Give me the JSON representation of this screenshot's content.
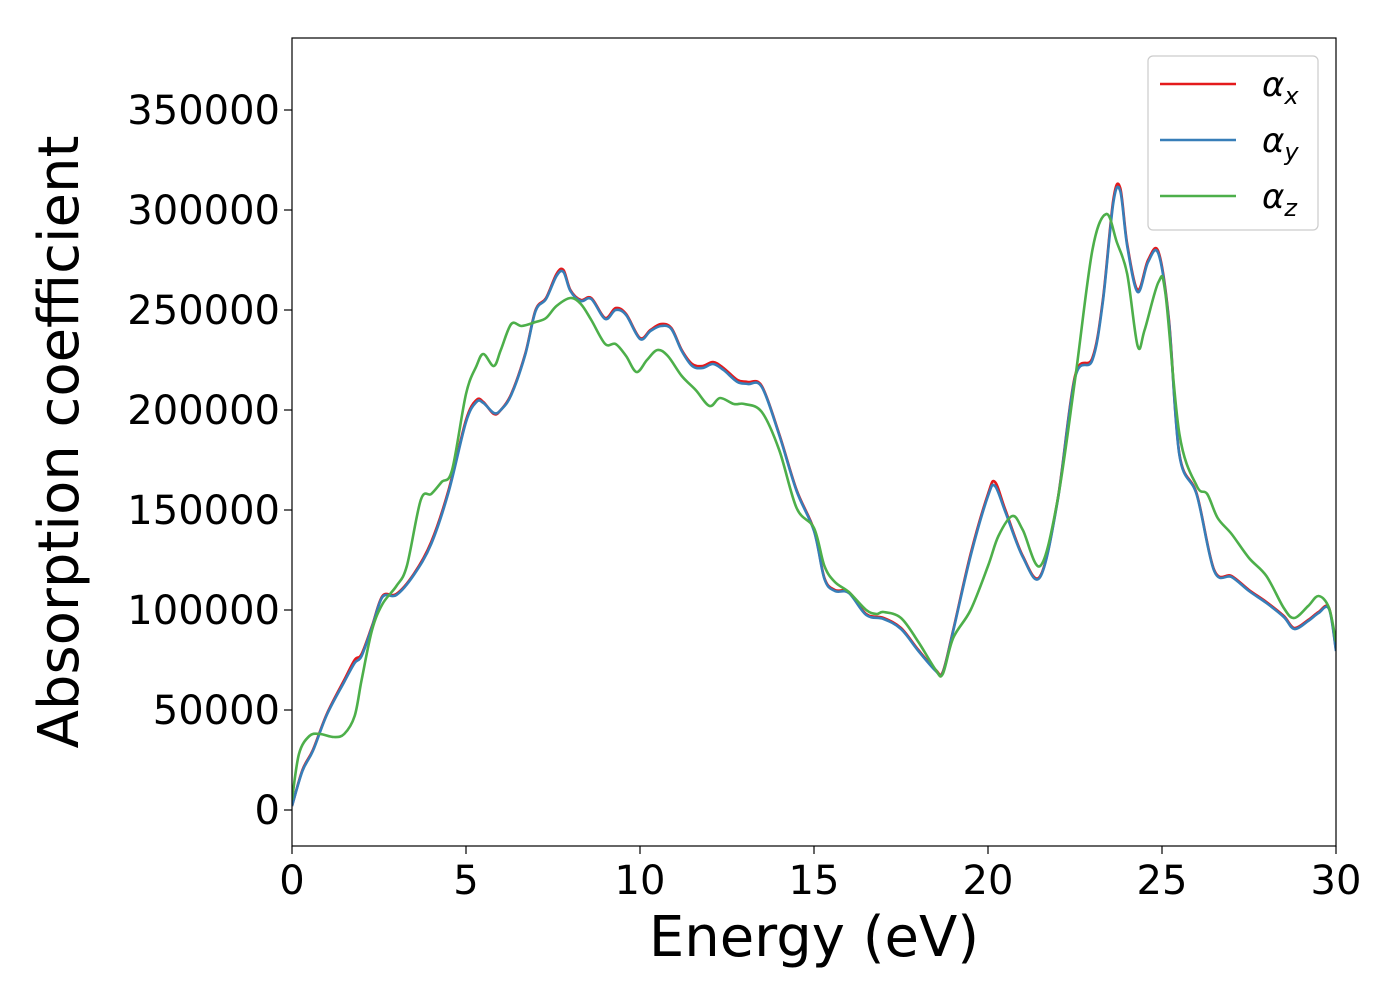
{
  "chart_data": {
    "type": "line",
    "title": "",
    "xlabel": "Energy (eV)",
    "ylabel": "Absorption coefficient",
    "xlim": [
      0,
      30
    ],
    "ylim": [
      -18000,
      386000
    ],
    "xticks": [
      0,
      5,
      10,
      15,
      20,
      25,
      30
    ],
    "yticks": [
      0,
      50000,
      100000,
      150000,
      200000,
      250000,
      300000,
      350000
    ],
    "grid": false,
    "legend": "top-right",
    "series": [
      {
        "name": "αx",
        "legend_base": "α",
        "legend_sub": "x",
        "color": "#e41a1c",
        "x": [
          0,
          0.3,
          0.6,
          1.0,
          1.5,
          1.8,
          2.0,
          2.3,
          2.6,
          3.0,
          3.5,
          4.0,
          4.5,
          5.0,
          5.3,
          5.5,
          5.8,
          6.0,
          6.3,
          6.7,
          7.0,
          7.3,
          7.6,
          7.8,
          8.0,
          8.3,
          8.6,
          9.0,
          9.3,
          9.6,
          10.0,
          10.3,
          10.6,
          10.9,
          11.2,
          11.5,
          11.8,
          12.1,
          12.4,
          12.8,
          13.1,
          13.5,
          14.0,
          14.5,
          15.0,
          15.3,
          15.6,
          16.0,
          16.5,
          17.0,
          17.5,
          18.0,
          18.5,
          18.7,
          19.0,
          19.5,
          20.0,
          20.2,
          20.5,
          21.0,
          21.5,
          22.0,
          22.5,
          23.0,
          23.3,
          23.6,
          23.8,
          24.0,
          24.3,
          24.6,
          24.9,
          25.2,
          25.5,
          26.0,
          26.5,
          27.0,
          27.5,
          28.0,
          28.5,
          28.8,
          29.2,
          29.5,
          29.8,
          30.0
        ],
        "values": [
          2000,
          20000,
          30000,
          48000,
          65000,
          75000,
          78000,
          92000,
          107000,
          108000,
          118000,
          134000,
          160000,
          195000,
          205000,
          204000,
          198000,
          200000,
          208000,
          228000,
          250000,
          256000,
          268000,
          270000,
          260000,
          255000,
          256000,
          246000,
          251000,
          248000,
          236000,
          240000,
          243000,
          241000,
          230000,
          223000,
          222000,
          224000,
          221000,
          215000,
          214000,
          212000,
          188000,
          160000,
          140000,
          116000,
          110000,
          109000,
          98000,
          96000,
          91000,
          80000,
          70000,
          69000,
          90000,
          128000,
          158000,
          164000,
          150000,
          127000,
          117000,
          155000,
          217000,
          226000,
          255000,
          305000,
          311000,
          283000,
          260000,
          275000,
          279000,
          245000,
          178000,
          158000,
          120000,
          117000,
          110000,
          104000,
          97000,
          91000,
          95000,
          99000,
          101000,
          80000
        ]
      },
      {
        "name": "αy",
        "legend_base": "α",
        "legend_sub": "y",
        "color": "#377eb8",
        "x": [
          0,
          0.3,
          0.6,
          1.0,
          1.5,
          1.8,
          2.0,
          2.3,
          2.6,
          3.0,
          3.5,
          4.0,
          4.5,
          5.0,
          5.3,
          5.5,
          5.8,
          6.0,
          6.3,
          6.7,
          7.0,
          7.3,
          7.6,
          7.8,
          8.0,
          8.3,
          8.6,
          9.0,
          9.3,
          9.6,
          10.0,
          10.3,
          10.6,
          10.9,
          11.2,
          11.5,
          11.8,
          12.1,
          12.4,
          12.8,
          13.1,
          13.5,
          14.0,
          14.5,
          15.0,
          15.3,
          15.6,
          16.0,
          16.5,
          17.0,
          17.5,
          18.0,
          18.5,
          18.7,
          19.0,
          19.5,
          20.0,
          20.2,
          20.5,
          21.0,
          21.5,
          22.0,
          22.5,
          23.0,
          23.3,
          23.6,
          23.8,
          24.0,
          24.3,
          24.6,
          24.9,
          25.2,
          25.5,
          26.0,
          26.5,
          27.0,
          27.5,
          28.0,
          28.5,
          28.8,
          29.2,
          29.5,
          29.8,
          30.0
        ],
        "values": [
          2000,
          19500,
          29500,
          47500,
          64000,
          73500,
          77000,
          91500,
          106500,
          107500,
          117500,
          133000,
          159000,
          194000,
          204000,
          203500,
          198500,
          200000,
          207500,
          227500,
          249500,
          255500,
          267000,
          269000,
          259500,
          254500,
          255500,
          245500,
          250000,
          247500,
          235500,
          239500,
          242000,
          240500,
          229500,
          222000,
          221000,
          223000,
          220000,
          214000,
          213000,
          211500,
          187500,
          159500,
          139500,
          115500,
          109500,
          108500,
          97500,
          95500,
          90500,
          79500,
          69500,
          68500,
          89500,
          127000,
          157000,
          162000,
          149000,
          126500,
          116500,
          154500,
          216000,
          225000,
          254000,
          303500,
          309500,
          282000,
          259000,
          274000,
          278000,
          244000,
          177500,
          157500,
          119500,
          116500,
          109500,
          103500,
          96500,
          90500,
          94500,
          98500,
          100500,
          79500
        ]
      },
      {
        "name": "αz",
        "legend_base": "α",
        "legend_sub": "z",
        "color": "#4daf4a",
        "x": [
          0,
          0.2,
          0.5,
          0.8,
          1.2,
          1.5,
          1.8,
          2.0,
          2.3,
          2.6,
          3.0,
          3.3,
          3.7,
          4.0,
          4.3,
          4.6,
          5.0,
          5.3,
          5.5,
          5.8,
          6.0,
          6.3,
          6.6,
          7.0,
          7.3,
          7.6,
          8.0,
          8.3,
          8.6,
          9.0,
          9.3,
          9.6,
          9.9,
          10.2,
          10.5,
          10.8,
          11.2,
          11.6,
          12.0,
          12.3,
          12.7,
          13.0,
          13.5,
          14.0,
          14.5,
          15.0,
          15.3,
          15.6,
          16.0,
          16.5,
          16.8,
          17.0,
          17.5,
          18.0,
          18.5,
          18.7,
          19.0,
          19.5,
          20.0,
          20.3,
          20.7,
          21.0,
          21.5,
          22.0,
          22.5,
          23.0,
          23.4,
          23.7,
          24.0,
          24.3,
          24.5,
          24.9,
          25.1,
          25.5,
          26.0,
          26.3,
          26.6,
          27.0,
          27.5,
          28.0,
          28.5,
          28.8,
          29.2,
          29.5,
          29.8,
          30.0
        ],
        "values": [
          5000,
          28000,
          37000,
          38000,
          36500,
          38000,
          47000,
          65000,
          90000,
          103000,
          112000,
          122000,
          155000,
          158000,
          164000,
          170000,
          208000,
          222000,
          228000,
          222000,
          230000,
          243000,
          242000,
          244000,
          246000,
          252000,
          256000,
          253000,
          245000,
          233000,
          233000,
          227000,
          219000,
          225000,
          230000,
          227000,
          217000,
          210000,
          202000,
          206000,
          203000,
          203000,
          199000,
          180000,
          151000,
          141000,
          122000,
          114000,
          109000,
          100000,
          98000,
          99000,
          96000,
          84000,
          70000,
          68000,
          86000,
          100000,
          122000,
          137000,
          147000,
          140000,
          122000,
          155000,
          215000,
          280000,
          298000,
          284000,
          268000,
          232000,
          240000,
          264000,
          258000,
          188000,
          162000,
          158000,
          146000,
          138000,
          126000,
          117000,
          101000,
          96000,
          102000,
          107000,
          101000,
          84000
        ]
      }
    ]
  }
}
